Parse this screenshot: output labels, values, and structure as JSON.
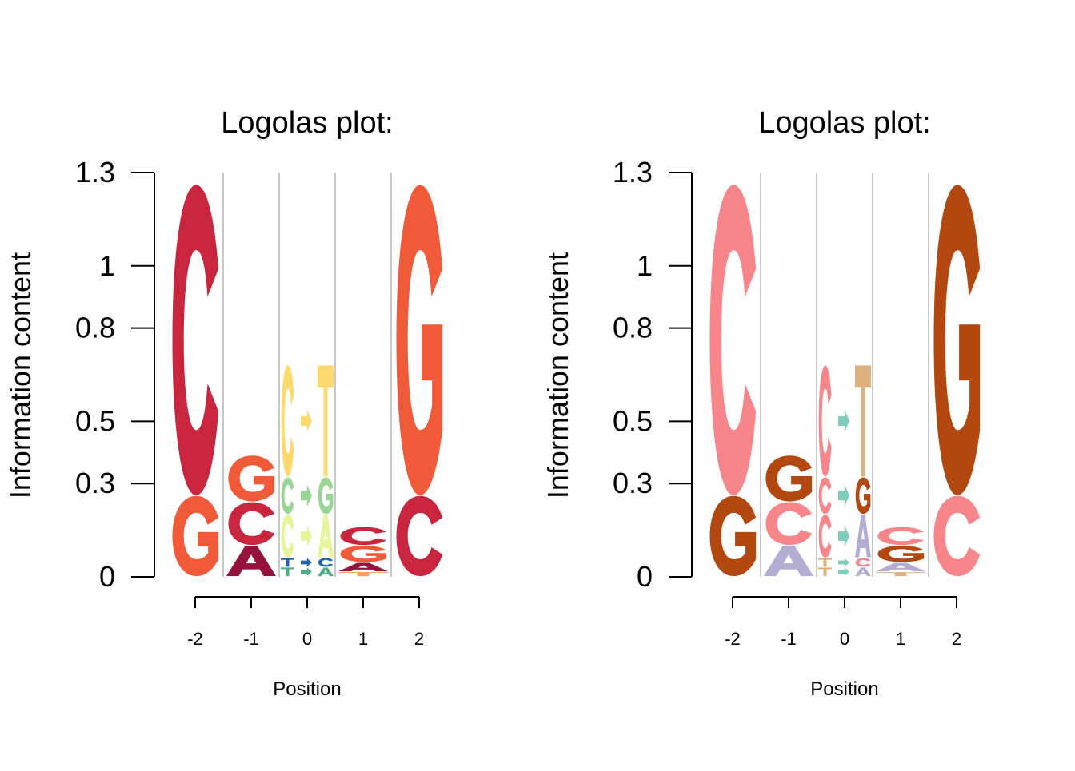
{
  "figure": {
    "panels_shown": 2
  },
  "chart_data": [
    {
      "type": "sequence-logo",
      "title": "Logolas plot:",
      "ylabel": "Information content",
      "xlabel": "Position",
      "ylim": [
        0,
        1.3
      ],
      "yticks": [
        0,
        0.3,
        0.5,
        0.8,
        1,
        1.3
      ],
      "ytick_labels": [
        "0",
        "0.3",
        "0.5",
        "0.8",
        "1",
        "1.3"
      ],
      "positions": [
        "-2",
        "-1",
        "0",
        "1",
        "2"
      ],
      "gridlines": true,
      "columns": [
        {
          "position": "-2",
          "stack": [
            {
              "letter": "G",
              "height": 0.26,
              "color": "#f05a38"
            },
            {
              "letter": "C",
              "height": 1.0,
              "color": "#c9253f"
            }
          ]
        },
        {
          "position": "-1",
          "stack": [
            {
              "letter": "A",
              "height": 0.1,
              "color": "#96123a"
            },
            {
              "letter": "C",
              "height": 0.14,
              "color": "#c9253f"
            },
            {
              "letter": "G",
              "height": 0.15,
              "color": "#f05a38"
            }
          ]
        },
        {
          "position": "0",
          "dinucleotide": true,
          "stack": [
            {
              "left": "T",
              "right": "A",
              "height": 0.03,
              "lcolor": "#4fae84",
              "rcolor": "#4fae84",
              "acolor": "#4fae84"
            },
            {
              "left": "T",
              "right": "C",
              "height": 0.03,
              "lcolor": "#2166ac",
              "rcolor": "#2166ac",
              "acolor": "#2166ac"
            },
            {
              "left": "C",
              "right": "A",
              "height": 0.14,
              "lcolor": "#e6f59a",
              "rcolor": "#e6f59a",
              "acolor": "#e6f59a"
            },
            {
              "left": "C",
              "right": "G",
              "height": 0.12,
              "lcolor": "#99d594",
              "rcolor": "#99d594",
              "acolor": "#99d594"
            },
            {
              "left": "C",
              "right": "T",
              "height": 0.36,
              "lcolor": "#fdd96e",
              "rcolor": "#fdd96e",
              "acolor": "#fdd96e"
            }
          ]
        },
        {
          "position": "1",
          "stack": [
            {
              "letter": "T",
              "height": 0.015,
              "color": "#f8a14b"
            },
            {
              "letter": "A",
              "height": 0.03,
              "color": "#96123a"
            },
            {
              "letter": "G",
              "height": 0.055,
              "color": "#f05a38"
            },
            {
              "letter": "C",
              "height": 0.06,
              "color": "#c9253f"
            }
          ]
        },
        {
          "position": "2",
          "stack": [
            {
              "letter": "C",
              "height": 0.26,
              "color": "#c9253f"
            },
            {
              "letter": "G",
              "height": 1.0,
              "color": "#f05a38"
            }
          ]
        }
      ]
    },
    {
      "type": "sequence-logo",
      "title": "Logolas plot:",
      "ylabel": "Information content",
      "xlabel": "Position",
      "ylim": [
        0,
        1.3
      ],
      "yticks": [
        0,
        0.3,
        0.5,
        0.8,
        1,
        1.3
      ],
      "ytick_labels": [
        "0",
        "0.3",
        "0.5",
        "0.8",
        "1",
        "1.3"
      ],
      "positions": [
        "-2",
        "-1",
        "0",
        "1",
        "2"
      ],
      "gridlines": true,
      "columns": [
        {
          "position": "-2",
          "stack": [
            {
              "letter": "G",
              "height": 0.26,
              "color": "#b2470f"
            },
            {
              "letter": "C",
              "height": 1.0,
              "color": "#f8858a"
            }
          ]
        },
        {
          "position": "-1",
          "stack": [
            {
              "letter": "A",
              "height": 0.1,
              "color": "#b3acd3"
            },
            {
              "letter": "C",
              "height": 0.14,
              "color": "#f8858a"
            },
            {
              "letter": "G",
              "height": 0.15,
              "color": "#b2470f"
            }
          ]
        },
        {
          "position": "0",
          "dinucleotide": true,
          "stack": [
            {
              "left": "T",
              "right": "A",
              "height": 0.03,
              "lcolor": "#dfb07e",
              "rcolor": "#b3acd3",
              "acolor": "#7ccdb9"
            },
            {
              "left": "T",
              "right": "C",
              "height": 0.03,
              "lcolor": "#dfb07e",
              "rcolor": "#f8858a",
              "acolor": "#7ccdb9"
            },
            {
              "left": "C",
              "right": "A",
              "height": 0.14,
              "lcolor": "#f8858a",
              "rcolor": "#b3acd3",
              "acolor": "#7ccdb9"
            },
            {
              "left": "C",
              "right": "G",
              "height": 0.12,
              "lcolor": "#f8858a",
              "rcolor": "#b2470f",
              "acolor": "#7ccdb9"
            },
            {
              "left": "C",
              "right": "T",
              "height": 0.36,
              "lcolor": "#f8858a",
              "rcolor": "#dfb07e",
              "acolor": "#7ccdb9"
            }
          ]
        },
        {
          "position": "1",
          "stack": [
            {
              "letter": "T",
              "height": 0.015,
              "color": "#dfb07e"
            },
            {
              "letter": "A",
              "height": 0.03,
              "color": "#b3acd3"
            },
            {
              "letter": "G",
              "height": 0.055,
              "color": "#b2470f"
            },
            {
              "letter": "C",
              "height": 0.06,
              "color": "#f8858a"
            }
          ]
        },
        {
          "position": "2",
          "stack": [
            {
              "letter": "C",
              "height": 0.26,
              "color": "#f8858a"
            },
            {
              "letter": "G",
              "height": 1.0,
              "color": "#b2470f"
            }
          ]
        }
      ]
    }
  ]
}
